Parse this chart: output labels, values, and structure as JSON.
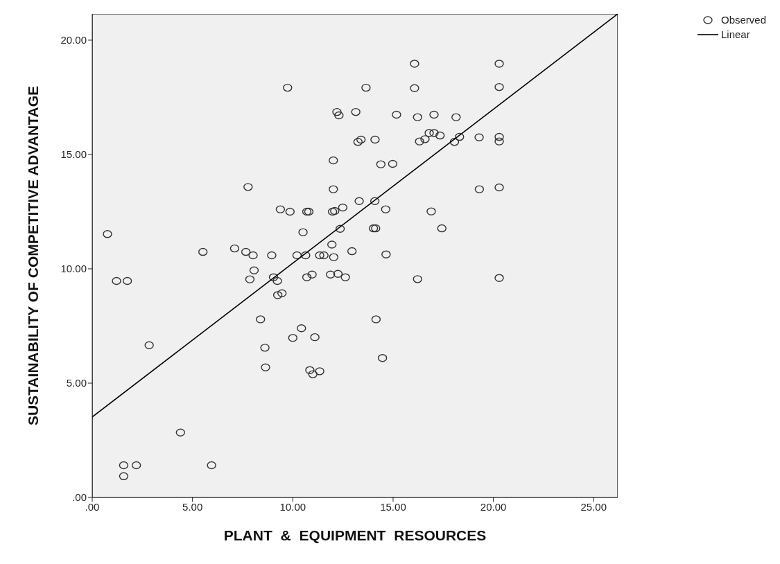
{
  "chart_data": {
    "type": "scatter",
    "xlabel": "PLANT & EQUIPMENT RESOURCES",
    "ylabel": "SUSTAINABILITY OF COMPETITIVE ADVANTAGE",
    "xlim": [
      0,
      26.2
    ],
    "ylim": [
      0,
      21.15
    ],
    "xticks": [
      {
        "value": 0,
        "label": ".00"
      },
      {
        "value": 5,
        "label": "5.00"
      },
      {
        "value": 10,
        "label": "10.00"
      },
      {
        "value": 15,
        "label": "15.00"
      },
      {
        "value": 20,
        "label": "20.00"
      },
      {
        "value": 25,
        "label": "25.00"
      }
    ],
    "yticks": [
      {
        "value": 0,
        "label": ".00"
      },
      {
        "value": 5,
        "label": "5.00"
      },
      {
        "value": 10,
        "label": "10.00"
      },
      {
        "value": 15,
        "label": "15.00"
      },
      {
        "value": 20,
        "label": "20.00"
      }
    ],
    "legend": "top right",
    "series": [
      {
        "name": "Observed",
        "color": "#333333",
        "marker": "circle",
        "x": [
          9.74,
          12.2,
          12.3,
          12.02,
          7.77,
          12.02,
          9.38,
          9.86,
          10.7,
          10.8,
          11.98,
          12.09,
          12.49,
          0.76,
          10.51,
          12.36,
          5.52,
          7.1,
          7.66,
          8.02,
          8.95,
          10.21,
          10.64,
          11.34,
          11.55,
          11.95,
          12.04,
          8.07,
          12.95,
          16.07,
          20.29,
          13.65,
          16.07,
          20.29,
          13.14,
          15.17,
          16.22,
          17.04,
          18.14,
          13.25,
          13.4,
          14.1,
          16.32,
          16.59,
          16.8,
          17.04,
          17.34,
          18.06,
          18.31,
          19.29,
          20.29,
          20.29,
          14.39,
          14.98,
          20.29,
          19.3,
          13.31,
          14.09,
          14.63,
          16.9,
          14.02,
          14.13,
          17.43,
          14.65,
          1.21,
          1.75,
          7.86,
          9.04,
          9.23,
          9.25,
          9.46,
          10.7,
          10.96,
          11.88,
          12.25,
          12.62,
          8.39,
          10.43,
          10.0,
          11.1,
          8.61,
          8.64,
          10.85,
          11.0,
          11.34,
          2.84,
          4.4,
          1.57,
          2.2,
          1.57,
          5.95,
          16.22,
          20.29,
          14.15,
          14.47
        ],
        "values": [
          17.92,
          16.86,
          16.71,
          14.74,
          13.58,
          13.48,
          12.6,
          12.5,
          12.5,
          12.5,
          12.5,
          12.53,
          12.68,
          11.52,
          11.6,
          11.75,
          10.74,
          10.89,
          10.74,
          10.59,
          10.59,
          10.59,
          10.59,
          10.59,
          10.59,
          11.06,
          10.51,
          9.93,
          10.77,
          18.97,
          18.97,
          17.92,
          17.9,
          17.95,
          16.86,
          16.74,
          16.63,
          16.74,
          16.63,
          15.55,
          15.65,
          15.65,
          15.57,
          15.67,
          15.94,
          15.94,
          15.83,
          15.55,
          15.77,
          15.75,
          15.77,
          15.57,
          14.57,
          14.59,
          13.56,
          13.48,
          12.96,
          12.96,
          12.6,
          12.51,
          11.77,
          11.77,
          11.77,
          10.63,
          9.47,
          9.47,
          9.54,
          9.63,
          9.47,
          8.85,
          8.93,
          9.63,
          9.75,
          9.75,
          9.78,
          9.63,
          7.79,
          7.4,
          6.98,
          7.01,
          6.55,
          5.69,
          5.57,
          5.39,
          5.52,
          6.66,
          2.84,
          1.41,
          1.41,
          0.93,
          1.41,
          9.55,
          9.6,
          7.79,
          6.1
        ]
      },
      {
        "name": "Linear",
        "type": "line",
        "color": "#000000",
        "marker": "none",
        "line_style": "solid",
        "x": [
          0,
          26.2
        ],
        "values": [
          3.52,
          21.15
        ]
      }
    ]
  }
}
